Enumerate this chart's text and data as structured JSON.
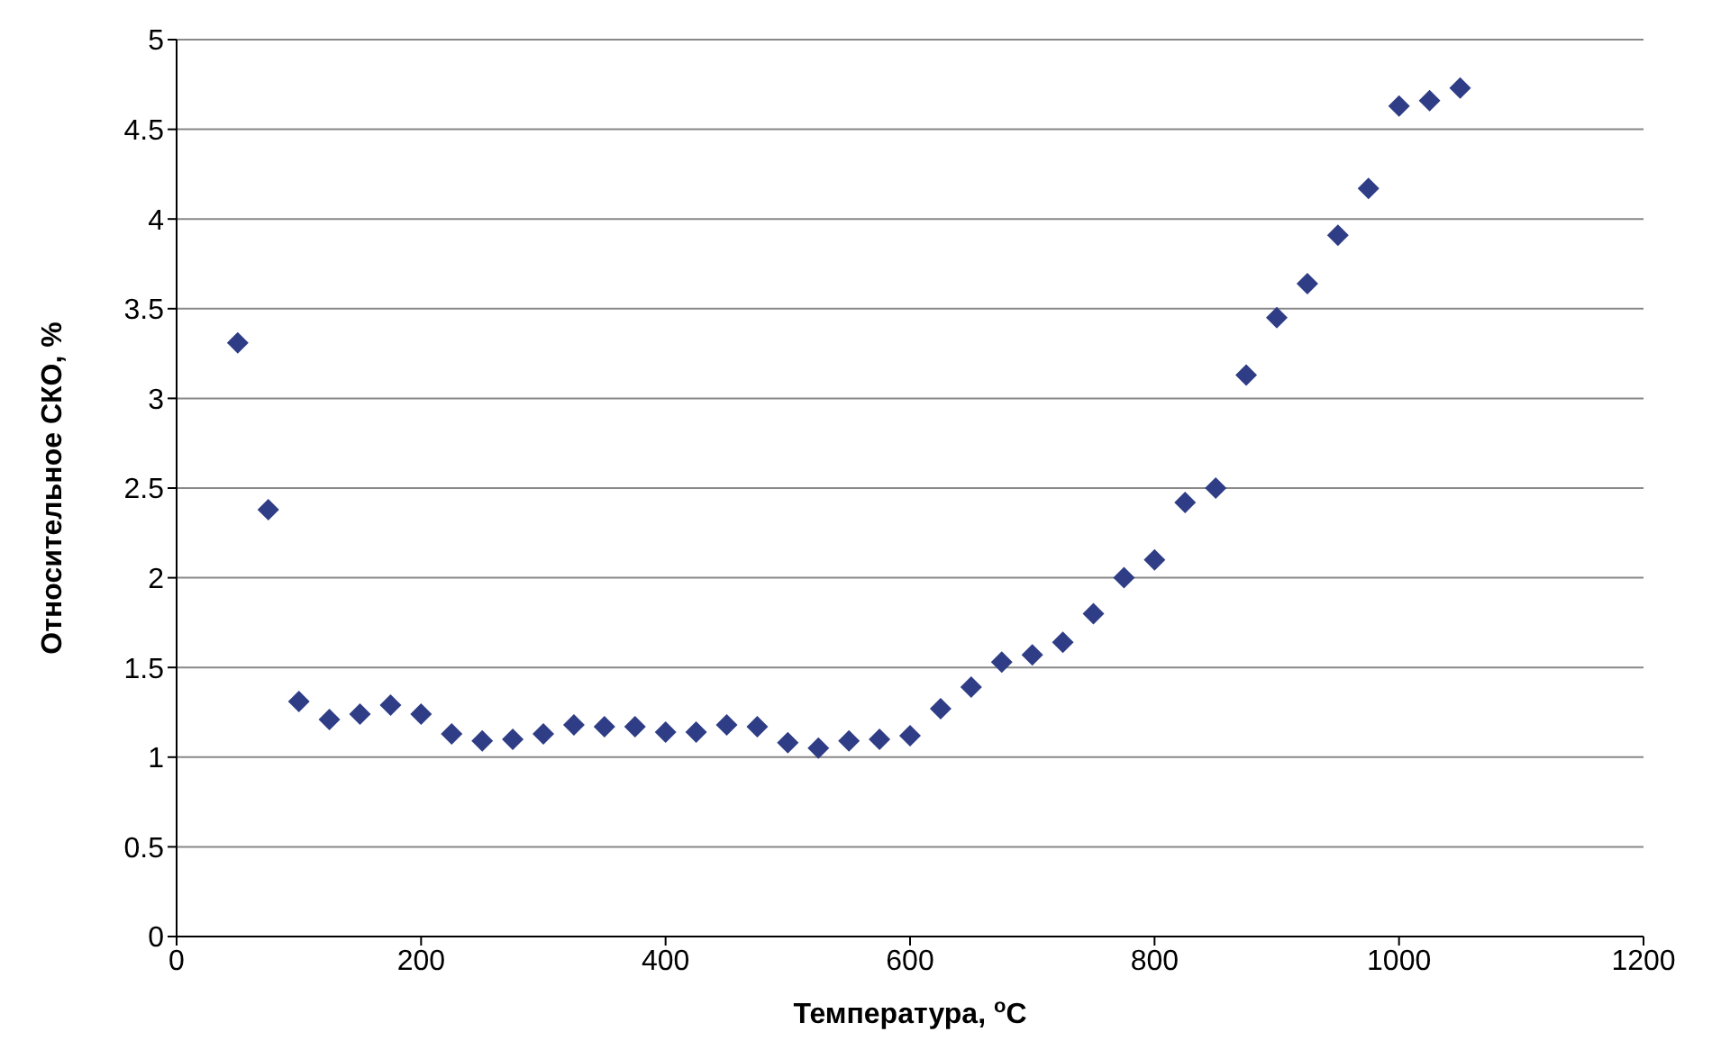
{
  "chart_data": {
    "type": "scatter",
    "xlabel": "Температура, $^{o}$C",
    "ylabel": "Относительное СКО, %",
    "x": [
      50,
      75,
      100,
      125,
      150,
      175,
      200,
      225,
      250,
      275,
      300,
      325,
      350,
      375,
      400,
      425,
      450,
      475,
      500,
      525,
      550,
      575,
      600,
      625,
      650,
      675,
      700,
      725,
      750,
      775,
      800,
      825,
      850,
      875,
      900,
      925,
      950,
      975,
      1000,
      1025,
      1050
    ],
    "series": [
      {
        "color": "#2f3d86",
        "values": [
          3.31,
          2.38,
          1.31,
          1.21,
          1.24,
          1.29,
          1.24,
          1.13,
          1.09,
          1.1,
          1.13,
          1.18,
          1.17,
          1.17,
          1.14,
          1.14,
          1.18,
          1.17,
          1.08,
          1.05,
          1.09,
          1.1,
          1.12,
          1.27,
          1.39,
          1.53,
          1.57,
          1.64,
          1.8,
          2.0,
          2.1,
          2.42,
          2.5,
          3.13,
          3.45,
          3.64,
          3.91,
          4.17,
          4.63,
          4.66,
          4.73
        ]
      }
    ],
    "xlim": [
      0,
      1200
    ],
    "xticks": [
      0,
      200,
      400,
      600,
      800,
      1000,
      1200
    ],
    "ylim": [
      0,
      5
    ],
    "yticks": [
      0,
      0.5,
      1,
      1.5,
      2,
      2.5,
      3,
      3.5,
      4,
      4.5,
      5
    ],
    "grid": "y",
    "marker": "diamond"
  }
}
